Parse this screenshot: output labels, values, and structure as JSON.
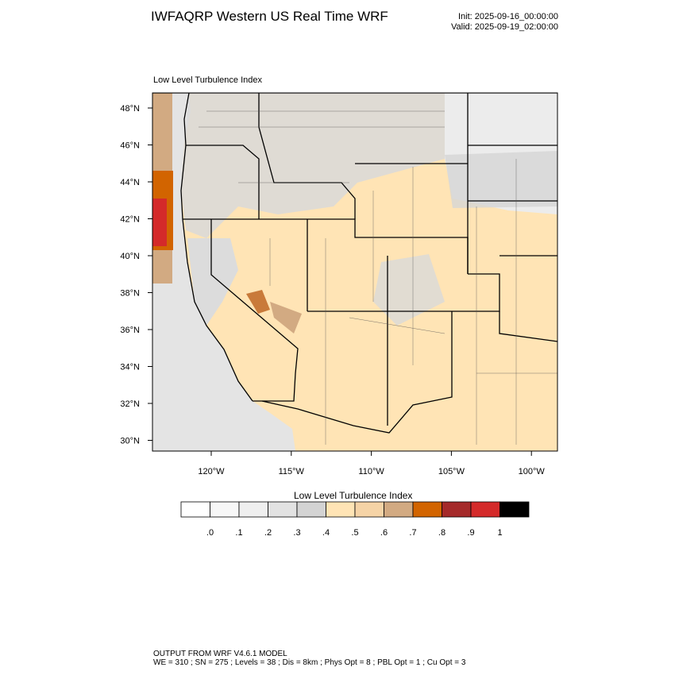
{
  "header": {
    "title": "IWFAQRP Western US Real Time WRF",
    "init": "Init: 2025-09-16_00:00:00",
    "valid": "Valid: 2025-09-19_02:00:00"
  },
  "map": {
    "title": "Low Level Turbulence Index",
    "lat_labels": [
      "48°N",
      "46°N",
      "44°N",
      "42°N",
      "40°N",
      "38°N",
      "36°N",
      "34°N",
      "32°N",
      "30°N"
    ],
    "lon_labels": [
      "120°W",
      "115°W",
      "110°W",
      "105°W",
      "100°W"
    ]
  },
  "colorbar": {
    "title": "Low Level Turbulence Index",
    "labels": [
      ".0",
      ".1",
      ".2",
      ".3",
      ".4",
      ".5",
      ".6",
      ".7",
      ".8",
      ".9",
      "1"
    ],
    "colors": [
      "#ffffff",
      "#f7f7f7",
      "#efefef",
      "#e2e2e2",
      "#d3d3d3",
      "#ffe4b5",
      "#f5d3a6",
      "#d2aa82",
      "#d26400",
      "#a52a2a",
      "#d42a2a",
      "#000000"
    ]
  },
  "footer": {
    "lines": [
      "OUTPUT FROM WRF V4.6.1 MODEL",
      "WE = 310 ; SN = 275 ; Levels = 38 ; Dis = 8km ; Phys Opt = 8 ; PBL Opt = 1 ; Cu Opt = 3"
    ]
  }
}
